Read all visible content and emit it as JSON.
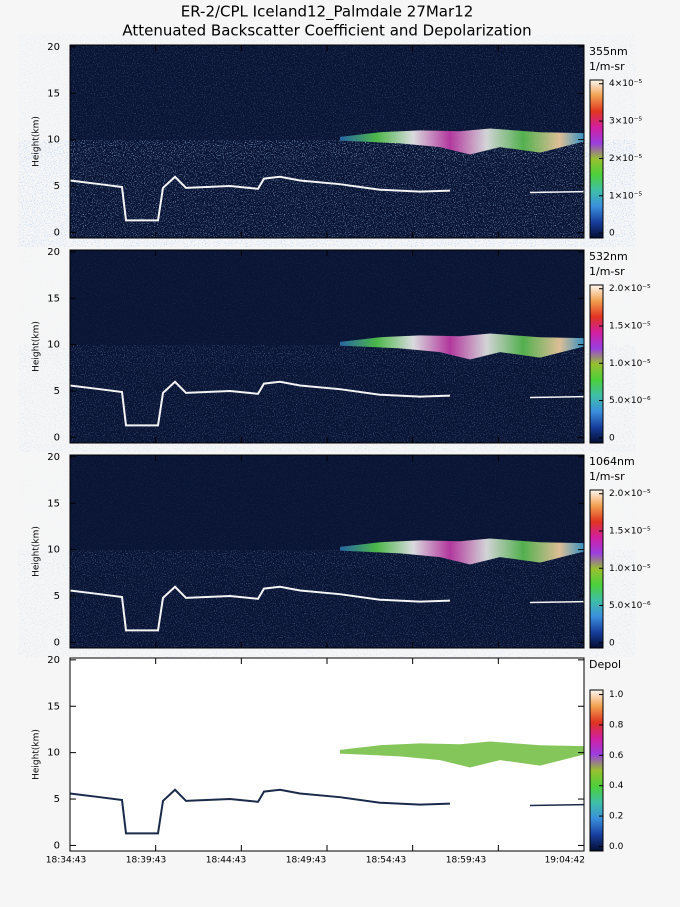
{
  "chart_data": {
    "type": "heatmap",
    "title": "ER-2/CPL Iceland12_Palmdale 27Mar12",
    "subtitle": "Attenuated Backscatter Coefficient and Depolarization",
    "xticks": [
      "18:34:43",
      "18:39:43",
      "18:44:43",
      "18:49:43",
      "18:54:43",
      "18:59:43",
      "19:04:42"
    ],
    "panels": [
      {
        "ylabel": "Height(km)",
        "ylim": [
          -0.6,
          20.2
        ],
        "yticks": [
          0,
          5,
          10,
          15,
          20
        ],
        "colorbar_label": [
          "355nm",
          "1/m-sr"
        ],
        "clim": [
          -1.3e-06,
          4.1e-05
        ],
        "cticks": [
          0,
          {
            "value": 1e-05,
            "label": "1×10⁻⁵"
          },
          {
            "value": 2e-05,
            "label": "2×10⁻⁵"
          },
          {
            "value": 3e-05,
            "label": "3×10⁻⁵"
          },
          {
            "value": 4e-05,
            "label": "4×10⁻⁵"
          }
        ]
      },
      {
        "ylabel": "Height(km)",
        "ylim": [
          -0.6,
          20.2
        ],
        "yticks": [
          0,
          5,
          10,
          15,
          20
        ],
        "colorbar_label": [
          "532nm",
          "1/m-sr"
        ],
        "clim": [
          -7e-07,
          2.05e-05
        ],
        "cticks": [
          0,
          {
            "value": 5e-06,
            "label": "5.0×10⁻⁶"
          },
          {
            "value": 1e-05,
            "label": "1.0×10⁻⁵"
          },
          {
            "value": 1.5e-05,
            "label": "1.5×10⁻⁵"
          },
          {
            "value": 2e-05,
            "label": "2.0×10⁻⁵"
          }
        ]
      },
      {
        "ylabel": "Height(km)",
        "ylim": [
          -0.6,
          20.2
        ],
        "yticks": [
          0,
          5,
          10,
          15,
          20
        ],
        "colorbar_label": [
          "1064nm",
          "1/m-sr"
        ],
        "clim": [
          -7e-07,
          2.05e-05
        ],
        "cticks": [
          0,
          {
            "value": 5e-06,
            "label": "5.0×10⁻⁶"
          },
          {
            "value": 1e-05,
            "label": "1.0×10⁻⁵"
          },
          {
            "value": 1.5e-05,
            "label": "1.5×10⁻⁵"
          },
          {
            "value": 2e-05,
            "label": "2.0×10⁻⁵"
          }
        ]
      },
      {
        "ylabel": "Height(km)",
        "ylim": [
          -0.6,
          20.2
        ],
        "yticks": [
          0,
          5,
          10,
          15,
          20
        ],
        "colorbar_label": [
          "Depol"
        ],
        "clim": [
          -0.03,
          1.03
        ],
        "cticks": [
          {
            "value": 0,
            "label": "0.0"
          },
          {
            "value": 0.2,
            "label": "0.2"
          },
          {
            "value": 0.4,
            "label": "0.4"
          },
          {
            "value": 0.6,
            "label": "0.6"
          },
          {
            "value": 0.8,
            "label": "0.8"
          },
          {
            "value": 1,
            "label": "1.0"
          }
        ]
      }
    ]
  }
}
